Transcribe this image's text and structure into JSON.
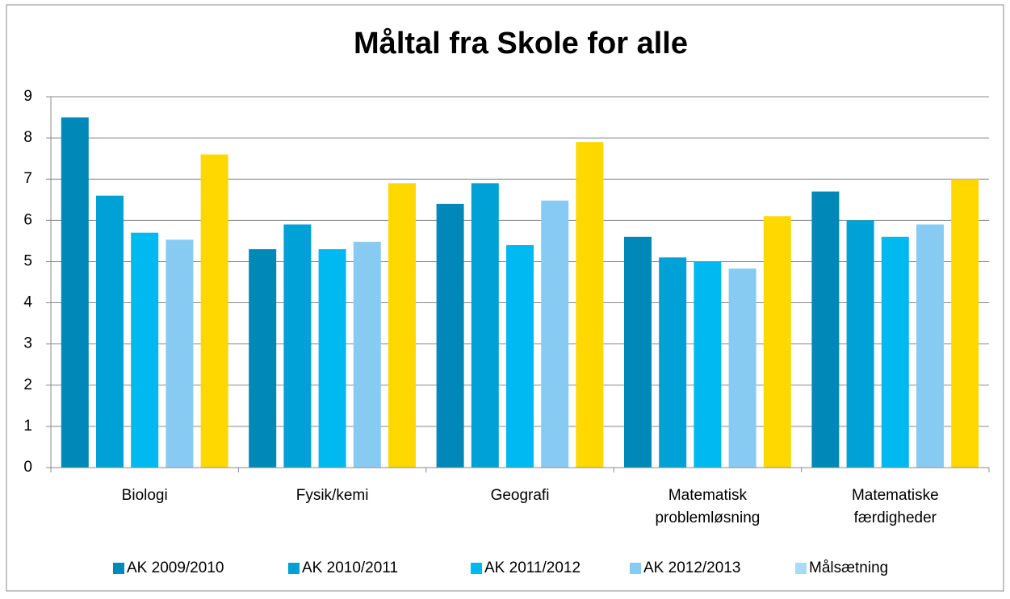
{
  "chart_data": {
    "type": "bar",
    "title": "Måltal fra Skole for alle",
    "categories": [
      "Biologi",
      "Fysik/kemi",
      "Geografi",
      "Matematisk problemløsning",
      "Matematiske færdigheder"
    ],
    "series": [
      {
        "name": "AK 2009/2010",
        "color": "#0089b8",
        "values": [
          8.5,
          5.3,
          6.4,
          5.6,
          6.7
        ]
      },
      {
        "name": "AK 2010/2011",
        "color": "#00a1d6",
        "values": [
          6.6,
          5.9,
          6.9,
          5.1,
          6.0
        ]
      },
      {
        "name": "AK 2011/2012",
        "color": "#00b9f0",
        "values": [
          5.7,
          5.3,
          5.4,
          5.0,
          5.6
        ]
      },
      {
        "name": "AK 2012/2013",
        "color": "#88cbf2",
        "values": [
          5.53,
          5.48,
          6.48,
          4.83,
          5.9
        ]
      },
      {
        "name": "Målsætning",
        "color": "#ffd800",
        "legend_color": "#a9dbf7",
        "values": [
          7.6,
          6.9,
          7.9,
          6.1,
          7.0
        ]
      }
    ],
    "ylim": [
      0,
      9
    ],
    "yticks": [
      0,
      1,
      2,
      3,
      4,
      5,
      6,
      7,
      8,
      9
    ],
    "grid": true,
    "legend": "bottom"
  }
}
